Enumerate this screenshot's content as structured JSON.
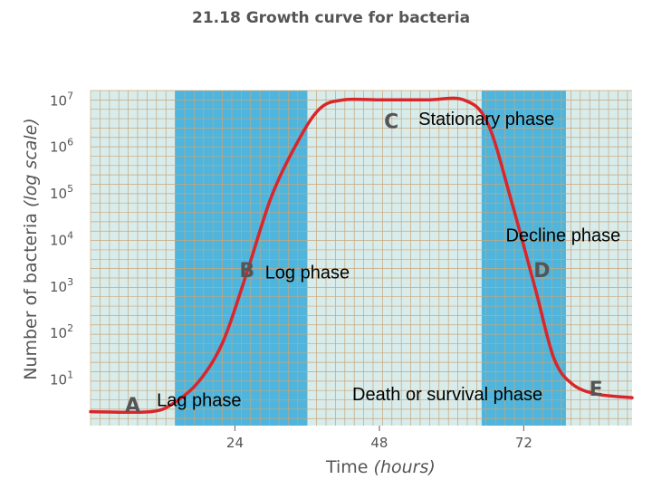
{
  "chart_data": {
    "type": "line",
    "title": "21.18 Growth curve for bacteria",
    "xlabel_main": "Time",
    "xlabel_unit": "(hours)",
    "ylabel_main": "Number of bacteria",
    "ylabel_unit": "(log scale)",
    "y_scale": "log",
    "xlim": [
      0,
      90
    ],
    "ylim_log10": [
      0,
      7.2
    ],
    "x_ticks": [
      {
        "value": 24,
        "label": "24"
      },
      {
        "value": 48,
        "label": "48"
      },
      {
        "value": 72,
        "label": "72"
      }
    ],
    "y_ticks": [
      {
        "exp": 1,
        "base": "10",
        "sup": "1"
      },
      {
        "exp": 2,
        "base": "10",
        "sup": "2"
      },
      {
        "exp": 3,
        "base": "10",
        "sup": "3"
      },
      {
        "exp": 4,
        "base": "10",
        "sup": "4"
      },
      {
        "exp": 5,
        "base": "10",
        "sup": "5"
      },
      {
        "exp": 6,
        "base": "10",
        "sup": "6"
      },
      {
        "exp": 7,
        "base": "10",
        "sup": "7"
      }
    ],
    "shaded_bands": [
      {
        "x0": 14,
        "x1": 36
      },
      {
        "x0": 65,
        "x1": 79
      }
    ],
    "series": [
      {
        "color": "#d9262b",
        "points": [
          [
            0,
            0.3
          ],
          [
            10,
            0.3
          ],
          [
            14,
            0.5
          ],
          [
            18,
            0.95
          ],
          [
            22,
            1.8
          ],
          [
            26,
            3.3
          ],
          [
            30,
            4.9
          ],
          [
            34,
            6.0
          ],
          [
            38,
            6.8
          ],
          [
            42,
            7.0
          ],
          [
            48,
            7.0
          ],
          [
            56,
            7.0
          ],
          [
            62,
            7.0
          ],
          [
            66,
            6.5
          ],
          [
            70,
            4.8
          ],
          [
            74,
            2.9
          ],
          [
            77,
            1.45
          ],
          [
            80,
            0.9
          ],
          [
            84,
            0.68
          ],
          [
            90,
            0.6
          ]
        ]
      }
    ],
    "phase_letters": [
      {
        "letter": "A",
        "x": 7,
        "y_log": 0.45
      },
      {
        "letter": "B",
        "x": 26,
        "y_log": 3.35
      },
      {
        "letter": "C",
        "x": 50,
        "y_log": 6.55
      },
      {
        "letter": "D",
        "x": 75,
        "y_log": 3.35
      },
      {
        "letter": "E",
        "x": 84,
        "y_log": 0.8
      }
    ],
    "annotations": [
      {
        "text": "Lag phase",
        "x": 11,
        "y_log": 0.55
      },
      {
        "text": "Log phase",
        "x": 29,
        "y_log": 3.3
      },
      {
        "text": "Stationary phase",
        "x": 54.5,
        "y_log": 6.6
      },
      {
        "text": "Decline phase",
        "x": 69,
        "y_log": 4.1
      },
      {
        "text": "Death or survival phase",
        "x": 43.5,
        "y_log": 0.68
      }
    ],
    "colors": {
      "grid_bg": "#d8ecec",
      "grid_line": "#c8a67a",
      "band": "#4db5de",
      "curve": "#d9262b",
      "text": "#555555"
    },
    "grid": true
  }
}
